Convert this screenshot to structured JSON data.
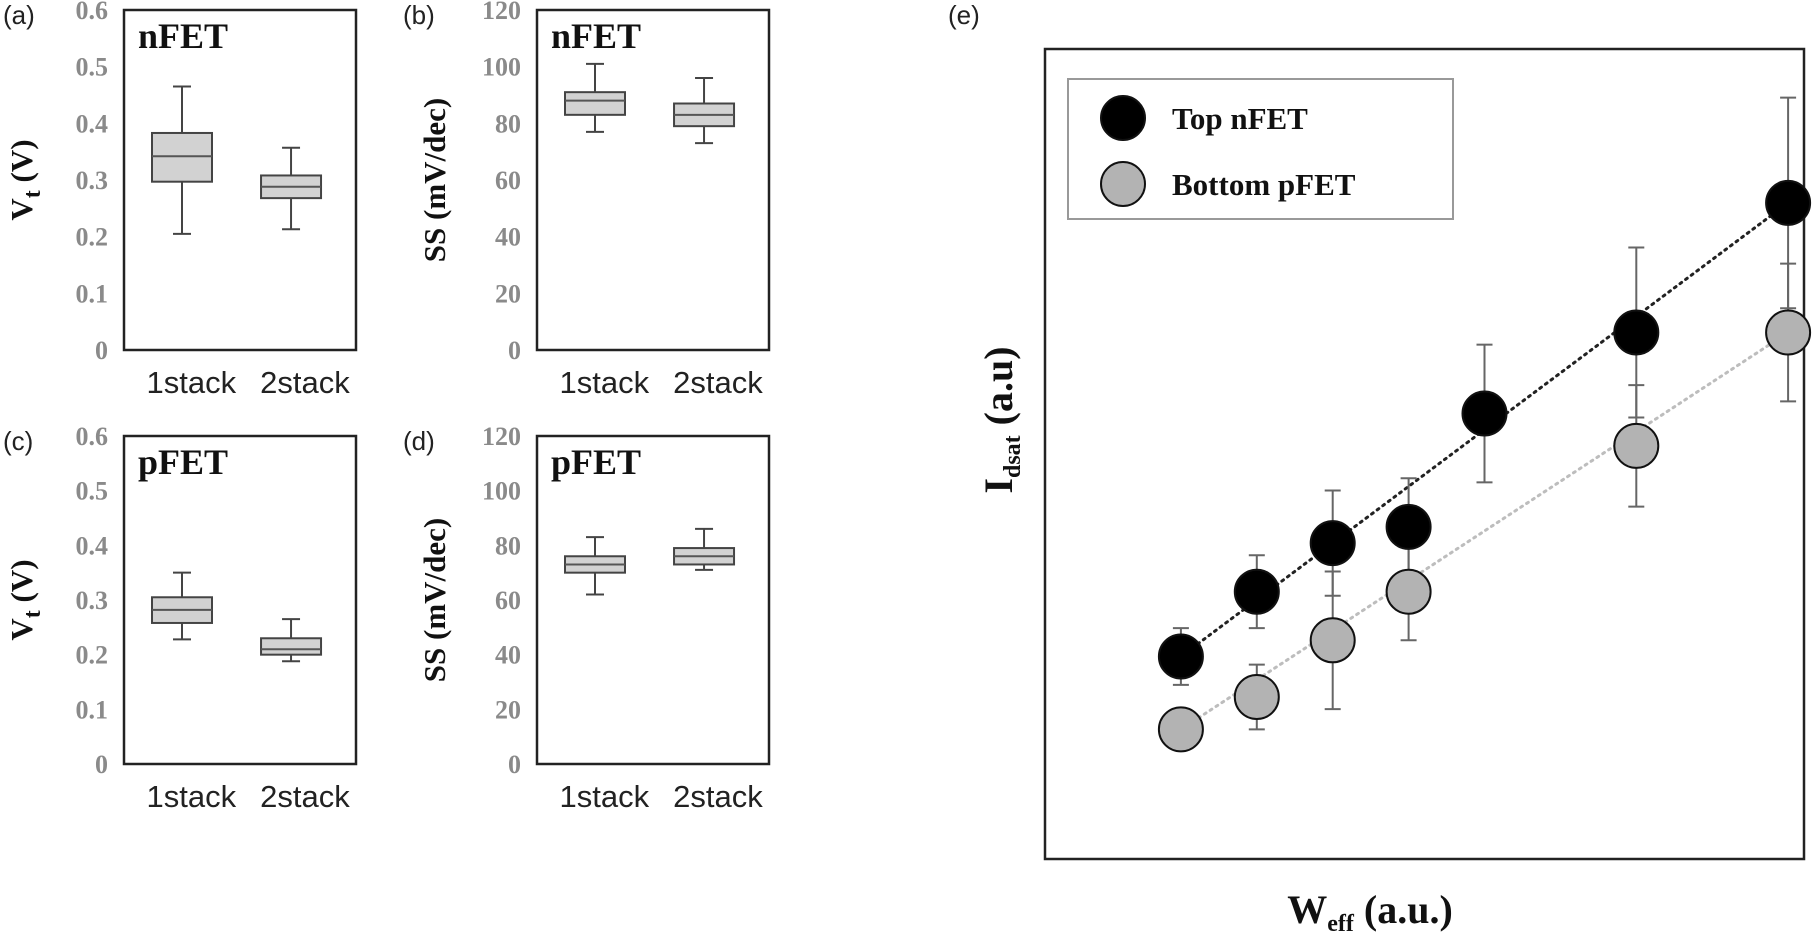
{
  "chart_data": [
    {
      "panel": "(a)",
      "type": "box",
      "title": "nFET",
      "ylabel": "V",
      "ylabel_sub": "t",
      "ylabel_unit": " (V)",
      "ylim": [
        0,
        0.6
      ],
      "yticks": [
        "0",
        "0.1",
        "0.2",
        "0.3",
        "0.4",
        "0.5",
        "0.6"
      ],
      "categories": [
        "1stack",
        "2stack"
      ],
      "boxes": [
        {
          "min": 0.205,
          "q1": 0.297,
          "median": 0.342,
          "q3": 0.383,
          "max": 0.465
        },
        {
          "min": 0.213,
          "q1": 0.268,
          "median": 0.288,
          "q3": 0.308,
          "max": 0.357
        }
      ]
    },
    {
      "panel": "(b)",
      "type": "box",
      "title": "nFET",
      "ylabel": "SS (mV/dec)",
      "ylim": [
        0,
        120
      ],
      "yticks": [
        "0",
        "20",
        "40",
        "60",
        "80",
        "100",
        "120"
      ],
      "categories": [
        "1stack",
        "2stack"
      ],
      "boxes": [
        {
          "min": 77,
          "q1": 83,
          "median": 88,
          "q3": 91,
          "max": 101
        },
        {
          "min": 73,
          "q1": 79,
          "median": 83,
          "q3": 87,
          "max": 96
        }
      ]
    },
    {
      "panel": "(c)",
      "type": "box",
      "title": "pFET",
      "ylabel": "V",
      "ylabel_sub": "t",
      "ylabel_unit": " (V)",
      "ylim": [
        0,
        0.6
      ],
      "yticks": [
        "0",
        "0.1",
        "0.2",
        "0.3",
        "0.4",
        "0.5",
        "0.6"
      ],
      "categories": [
        "1stack",
        "2stack"
      ],
      "boxes": [
        {
          "min": 0.228,
          "q1": 0.258,
          "median": 0.282,
          "q3": 0.305,
          "max": 0.35
        },
        {
          "min": 0.188,
          "q1": 0.2,
          "median": 0.21,
          "q3": 0.23,
          "max": 0.265
        }
      ]
    },
    {
      "panel": "(d)",
      "type": "box",
      "title": "pFET",
      "ylabel": "SS (mV/dec)",
      "ylim": [
        0,
        120
      ],
      "yticks": [
        "0",
        "20",
        "40",
        "60",
        "80",
        "100",
        "120"
      ],
      "categories": [
        "1stack",
        "2stack"
      ],
      "boxes": [
        {
          "min": 62,
          "q1": 70,
          "median": 73,
          "q3": 76,
          "max": 83
        },
        {
          "min": 71,
          "q1": 73,
          "median": 76,
          "q3": 79,
          "max": 86
        }
      ]
    },
    {
      "panel": "(e)",
      "type": "scatter",
      "xlabel": "W",
      "xlabel_sub": "eff",
      "xlabel_unit": " (a.u.)",
      "ylabel": "I",
      "ylabel_sub": "dsat",
      "ylabel_unit": " (a.u)",
      "xlim": [
        0,
        10
      ],
      "ylim": [
        0,
        10
      ],
      "legend_position": "top-left",
      "series": [
        {
          "name": "Top nFET",
          "color": "#000000",
          "x": [
            1.0,
            2.0,
            3.0,
            4.0,
            5.0,
            7.0,
            9.0
          ],
          "y": [
            2.5,
            3.3,
            3.9,
            4.1,
            5.5,
            6.5,
            8.1
          ],
          "err": [
            0.35,
            0.45,
            0.65,
            0.6,
            0.85,
            1.05,
            1.3
          ]
        },
        {
          "name": "Bottom pFET",
          "color": "#b3b3b3",
          "x": [
            1.0,
            2.0,
            3.0,
            4.0,
            7.0,
            9.0
          ],
          "y": [
            1.6,
            2.0,
            2.7,
            3.3,
            5.1,
            6.5
          ],
          "err": [
            0.0,
            0.4,
            0.85,
            0.6,
            0.75,
            0.85
          ]
        }
      ]
    }
  ]
}
